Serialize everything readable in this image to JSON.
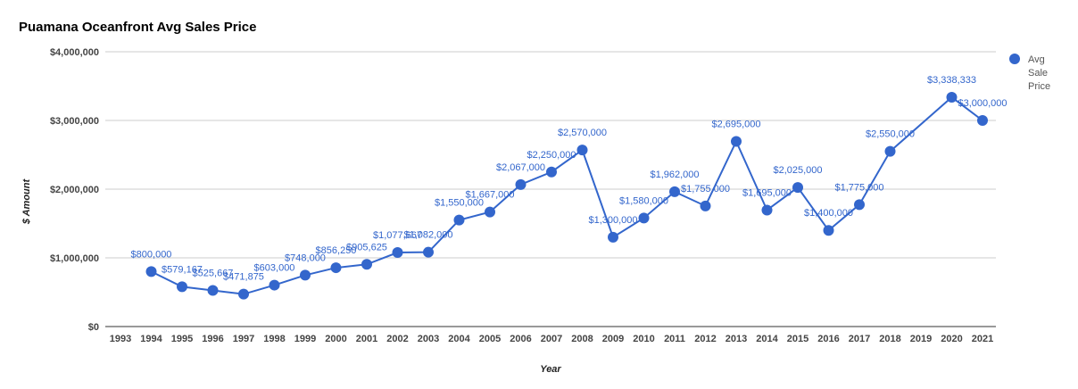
{
  "chart_data": {
    "type": "line",
    "title": "Puamana Oceanfront Avg Sales Price",
    "xlabel": "Year",
    "ylabel": "$ Amount",
    "x_ticks": [
      "1993",
      "1994",
      "1995",
      "1996",
      "1997",
      "1998",
      "1999",
      "2000",
      "2001",
      "2002",
      "2003",
      "2004",
      "2005",
      "2006",
      "2007",
      "2008",
      "2009",
      "2010",
      "2011",
      "2012",
      "2013",
      "2014",
      "2015",
      "2016",
      "2017",
      "2018",
      "2019",
      "2020",
      "2021"
    ],
    "y_ticks": [
      "$0",
      "$1,000,000",
      "$2,000,000",
      "$3,000,000",
      "$4,000,000"
    ],
    "y_tick_values": [
      0,
      1000000,
      2000000,
      3000000,
      4000000
    ],
    "xlim": [
      1993,
      2021
    ],
    "ylim": [
      0,
      4000000
    ],
    "grid": true,
    "legend_position": "right",
    "series": [
      {
        "name_lines": [
          "Avg",
          "Sale",
          "Price"
        ],
        "color": "#3366cc",
        "x": [
          1994,
          1995,
          1996,
          1997,
          1998,
          1999,
          2000,
          2001,
          2002,
          2003,
          2004,
          2005,
          2006,
          2007,
          2008,
          2009,
          2010,
          2011,
          2012,
          2013,
          2014,
          2015,
          2016,
          2017,
          2018,
          2020,
          2021
        ],
        "values": [
          800000,
          579167,
          525667,
          471875,
          603000,
          748000,
          856250,
          905625,
          1077667,
          1082000,
          1550000,
          1667000,
          2067000,
          2250000,
          2570000,
          1300000,
          1580000,
          1962000,
          1755000,
          2695000,
          1695000,
          2025000,
          1400000,
          1775000,
          2550000,
          3338333,
          3000000
        ],
        "labels": [
          "$800,000",
          "$579,167",
          "$525,667",
          "$471,875",
          "$603,000",
          "$748,000",
          "$856,250",
          "$905,625",
          "$1,077,667",
          "$1,082,000",
          "$1,550,000",
          "$1,667,000",
          "$2,067,000",
          "$2,250,000",
          "$2,570,000",
          "$1,300,000",
          "$1,580,000",
          "$1,962,000",
          "$1,755,000",
          "$2,695,000",
          "$1,695,000",
          "$2,025,000",
          "$1,400,000",
          "$1,775,000",
          "$2,550,000",
          "$3,338,333",
          "$3,000,000"
        ]
      }
    ]
  }
}
